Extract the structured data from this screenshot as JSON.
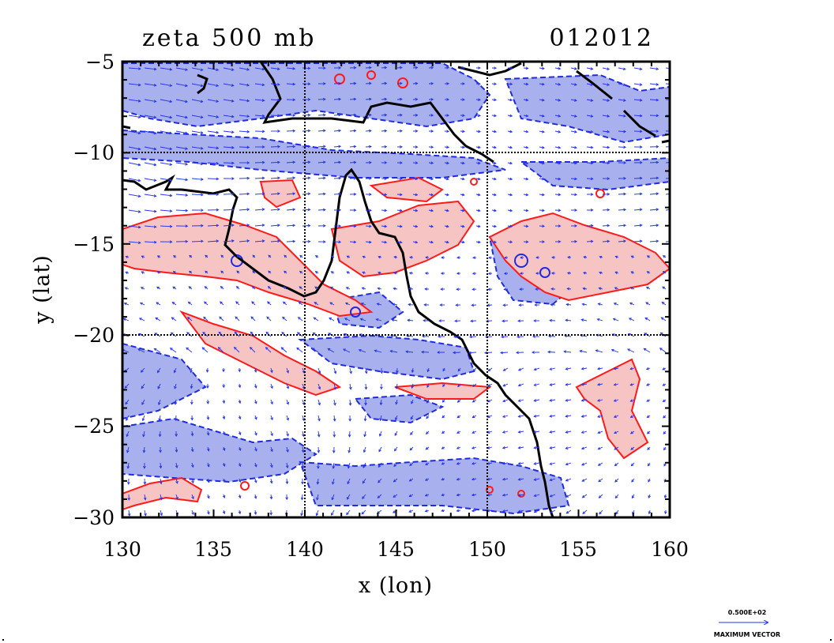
{
  "title": {
    "field": "zeta 500 mb",
    "time": "012012"
  },
  "axes": {
    "xlabel": "x (lon)",
    "ylabel": "y (lat)",
    "xticks": [
      "130",
      "135",
      "140",
      "145",
      "150",
      "155",
      "160"
    ],
    "yticks": [
      "−5",
      "−10",
      "−15",
      "−20",
      "−25",
      "−30"
    ],
    "xlim": [
      130,
      160
    ],
    "ylim": [
      -30,
      -5
    ]
  },
  "gridlines": {
    "lon": [
      140,
      150
    ],
    "lat": [
      -10,
      -20
    ]
  },
  "legend": {
    "magnitude": "0.500E+02",
    "label": "MAXIMUM VECTOR"
  },
  "colors": {
    "positive_fill": "#f7c4c4",
    "positive_line": "#ff1a1a",
    "negative_fill": "#a9b0ee",
    "negative_line": "#1f2be0",
    "coast": "#000000",
    "vectors": "#2233ee"
  }
}
